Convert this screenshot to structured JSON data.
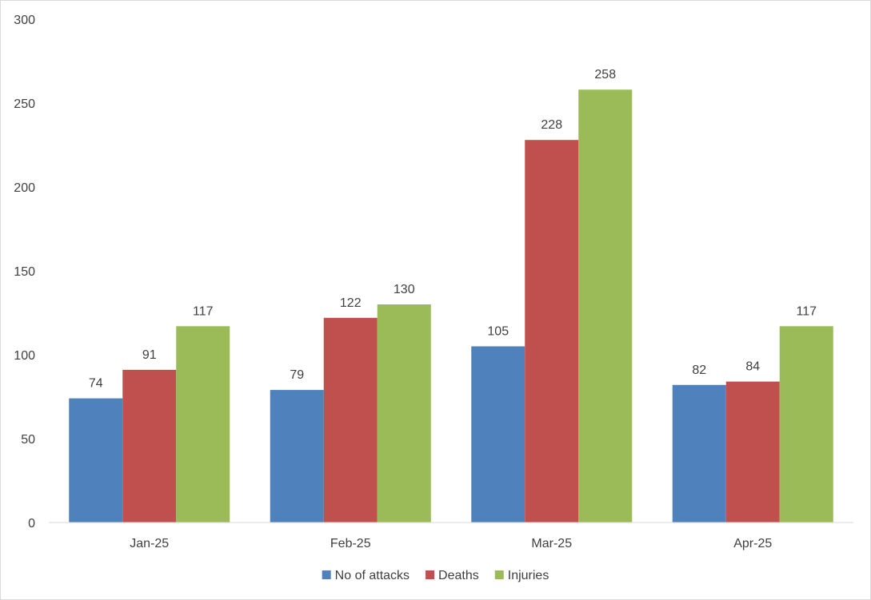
{
  "chart_data": {
    "type": "bar",
    "title": "",
    "xlabel": "",
    "ylabel": "",
    "categories": [
      "Jan-25",
      "Feb-25",
      "Mar-25",
      "Apr-25"
    ],
    "series": [
      {
        "name": "No of attacks",
        "color": "#4f81bd",
        "values": [
          74,
          79,
          105,
          82
        ]
      },
      {
        "name": "Deaths",
        "color": "#c0504d",
        "values": [
          91,
          122,
          228,
          84
        ]
      },
      {
        "name": "Injuries",
        "color": "#9bbb59",
        "values": [
          117,
          130,
          258,
          117
        ]
      }
    ],
    "ylim": [
      0,
      300
    ],
    "yticks": [
      0,
      50,
      100,
      150,
      200,
      250,
      300
    ],
    "grid": false,
    "data_labels": true,
    "legend_position": "bottom"
  }
}
